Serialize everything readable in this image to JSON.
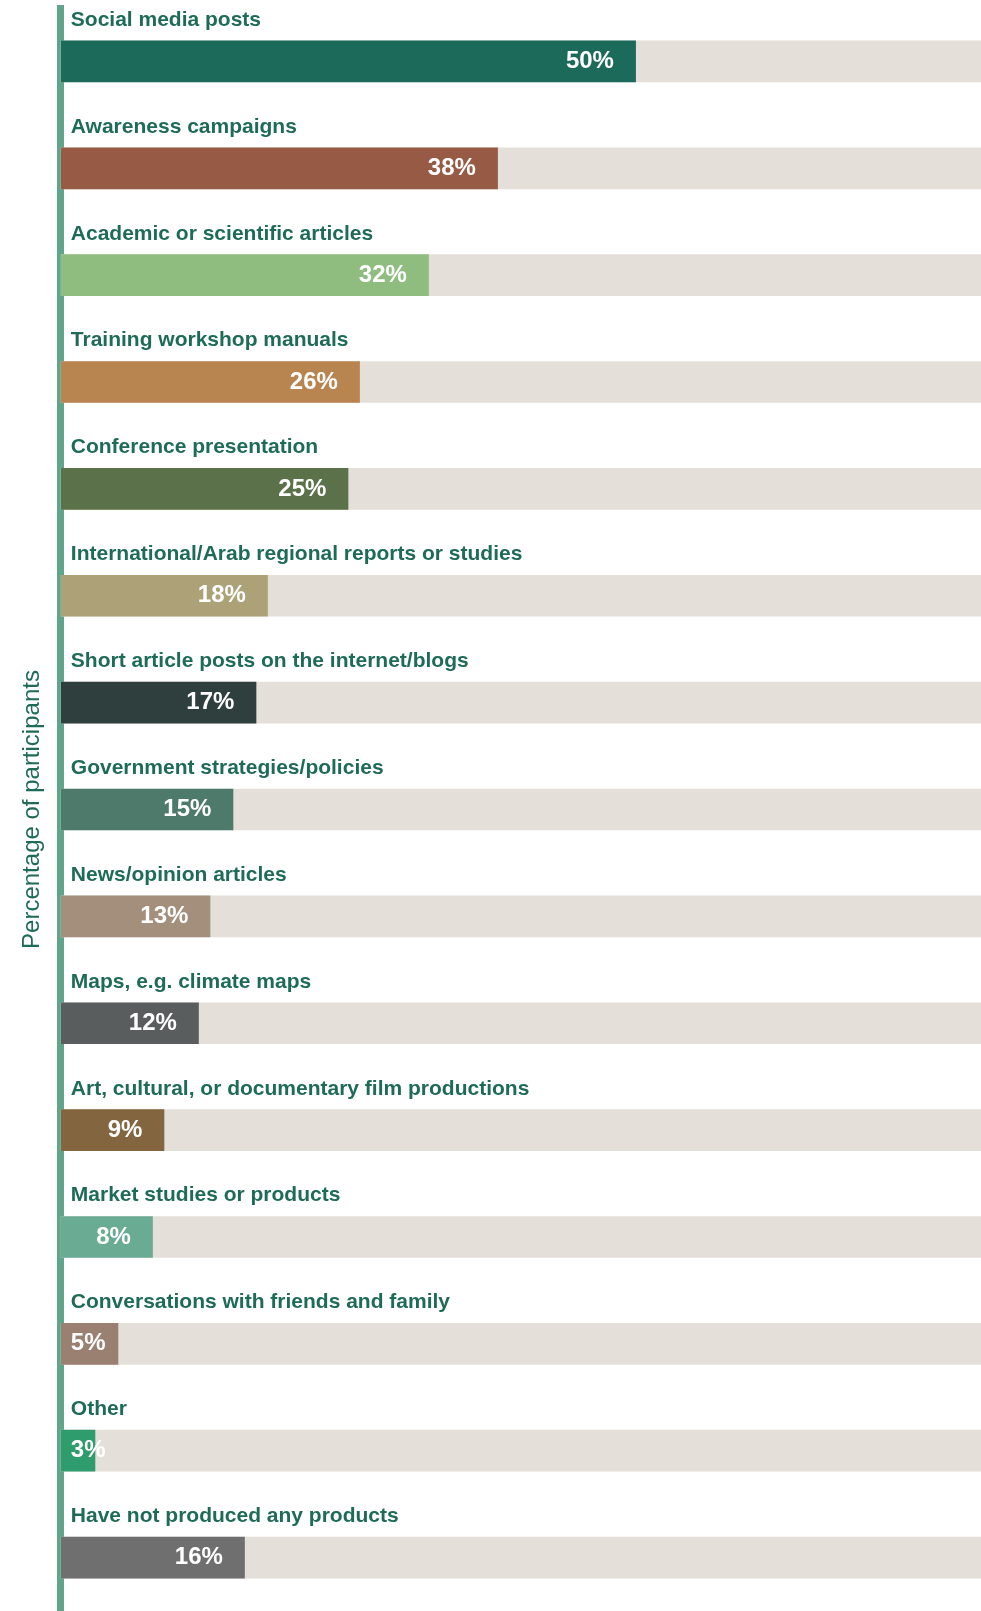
{
  "chart_data": {
    "type": "bar",
    "orientation": "horizontal",
    "ylabel": "Percentage of participants",
    "categories": [
      "Social media posts",
      "Awareness campaigns",
      "Academic or scientific articles",
      "Training workshop manuals",
      "Conference presentation",
      "International/Arab regional reports or studies",
      "Short article posts on the internet/blogs",
      "Government strategies/policies",
      "News/opinion articles",
      "Maps, e.g. climate maps",
      "Art, cultural, or documentary film productions",
      "Market studies or products",
      "Conversations with friends and family",
      "Other",
      "Have not produced any products"
    ],
    "values": [
      50,
      38,
      32,
      26,
      25,
      18,
      17,
      15,
      13,
      12,
      9,
      8,
      5,
      3,
      16
    ],
    "colors": [
      "#1c6b5a",
      "#975a45",
      "#8fbd80",
      "#b8844f",
      "#5a7149",
      "#ada177",
      "#2e3f3e",
      "#4e7a6c",
      "#a38f7b",
      "#5a5d5e",
      "#836540",
      "#6aab94",
      "#9a8071",
      "#2e9c6d",
      "#6f6f6f"
    ],
    "value_labels": [
      "50%",
      "38%",
      "32%",
      "26%",
      "25%",
      "18%",
      "17%",
      "15%",
      "13%",
      "12%",
      "9%",
      "8%",
      "5%",
      "3%",
      "16%"
    ],
    "tick_labels": "y"
  }
}
